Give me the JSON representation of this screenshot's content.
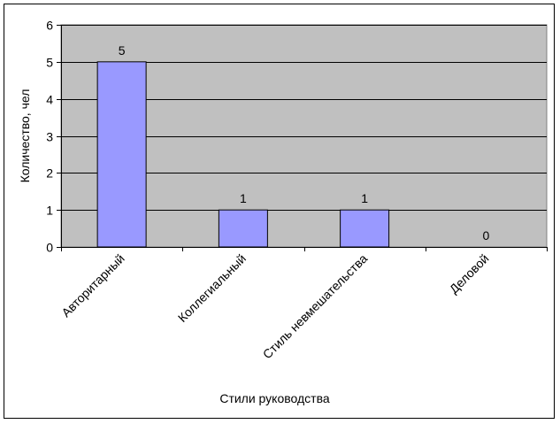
{
  "chart_data": {
    "type": "bar",
    "categories": [
      "Авторитарный",
      "Коллегиальный",
      "Стиль невмешательства",
      "Деловой"
    ],
    "values": [
      5,
      1,
      1,
      0
    ],
    "xlabel": "Стили руководства",
    "ylabel": "Количество, чел",
    "ylim": [
      0,
      6
    ],
    "yticks": [
      0,
      1,
      2,
      3,
      4,
      5,
      6
    ],
    "grid": true,
    "legend": "none",
    "data_labels": true,
    "colors": {
      "bar": "#9999ff",
      "plot_area": "#c0c0c0",
      "gridline": "#000000"
    }
  }
}
